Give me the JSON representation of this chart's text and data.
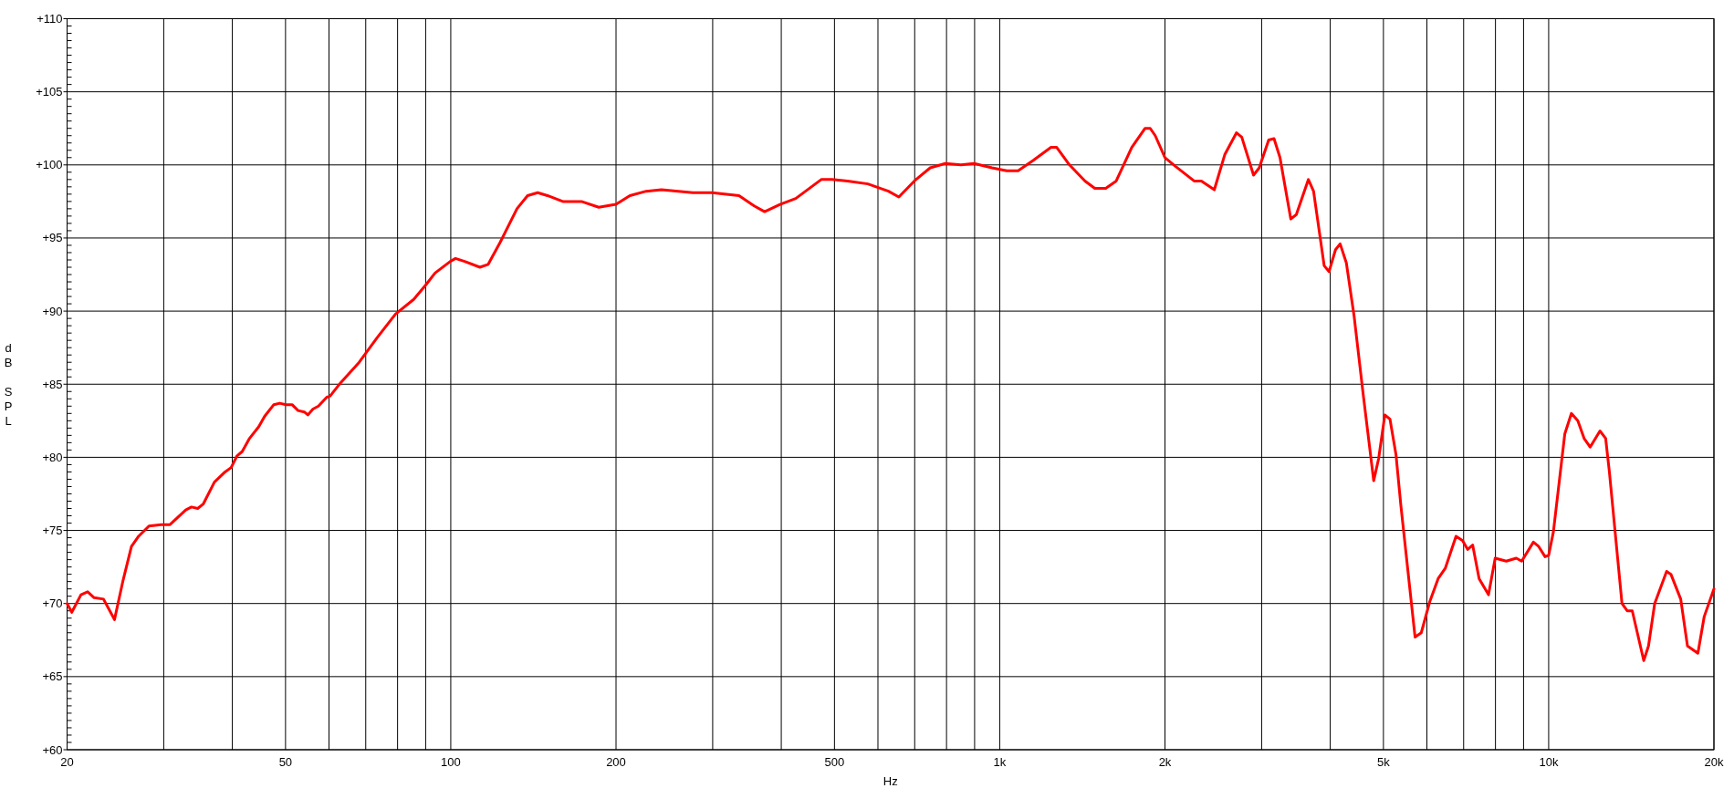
{
  "chart_data": {
    "type": "line",
    "xlabel": "Hz",
    "ylabel": "dB SPL",
    "log": "x",
    "grid": true,
    "color": "#ff0000",
    "xlim": [
      20,
      20000
    ],
    "ylim": [
      60,
      110
    ],
    "xticks": [
      20,
      {
        "value": 30,
        "label": null
      },
      {
        "value": 40,
        "label": null
      },
      50,
      {
        "value": 60,
        "label": null
      },
      {
        "value": 70,
        "label": null
      },
      {
        "value": 80,
        "label": null
      },
      {
        "value": 90,
        "label": null
      },
      100,
      200,
      {
        "value": 300,
        "label": null
      },
      {
        "value": 400,
        "label": null
      },
      500,
      {
        "value": 600,
        "label": null
      },
      {
        "value": 700,
        "label": null
      },
      {
        "value": 800,
        "label": null
      },
      {
        "value": 900,
        "label": null
      },
      {
        "value": 1000,
        "label": "1k"
      },
      {
        "value": 2000,
        "label": "2k"
      },
      {
        "value": 3000,
        "label": null
      },
      {
        "value": 4000,
        "label": null
      },
      {
        "value": 5000,
        "label": "5k"
      },
      {
        "value": 6000,
        "label": null
      },
      {
        "value": 7000,
        "label": null
      },
      {
        "value": 8000,
        "label": null
      },
      {
        "value": 9000,
        "label": null
      },
      {
        "value": 10000,
        "label": "10k"
      },
      {
        "value": 20000,
        "label": "20k"
      }
    ],
    "yticks": [
      {
        "value": 60,
        "label": "+60"
      },
      {
        "value": 60.5,
        "label": null
      },
      {
        "value": 61,
        "label": null
      },
      {
        "value": 61.5,
        "label": null
      },
      {
        "value": 62,
        "label": null
      },
      {
        "value": 62.5,
        "label": null
      },
      {
        "value": 63,
        "label": null
      },
      {
        "value": 63.5,
        "label": null
      },
      {
        "value": 64,
        "label": null
      },
      {
        "value": 64.5,
        "label": null
      },
      {
        "value": 65,
        "label": "+65"
      },
      {
        "value": 65.5,
        "label": null
      },
      {
        "value": 66,
        "label": null
      },
      {
        "value": 66.5,
        "label": null
      },
      {
        "value": 67,
        "label": null
      },
      {
        "value": 67.5,
        "label": null
      },
      {
        "value": 68,
        "label": null
      },
      {
        "value": 68.5,
        "label": null
      },
      {
        "value": 69,
        "label": null
      },
      {
        "value": 69.5,
        "label": null
      },
      {
        "value": 70,
        "label": "+70"
      },
      {
        "value": 70.5,
        "label": null
      },
      {
        "value": 71,
        "label": null
      },
      {
        "value": 71.5,
        "label": null
      },
      {
        "value": 72,
        "label": null
      },
      {
        "value": 72.5,
        "label": null
      },
      {
        "value": 73,
        "label": null
      },
      {
        "value": 73.5,
        "label": null
      },
      {
        "value": 74,
        "label": null
      },
      {
        "value": 74.5,
        "label": null
      },
      {
        "value": 75,
        "label": "+75"
      },
      {
        "value": 75.5,
        "label": null
      },
      {
        "value": 76,
        "label": null
      },
      {
        "value": 76.5,
        "label": null
      },
      {
        "value": 77,
        "label": null
      },
      {
        "value": 77.5,
        "label": null
      },
      {
        "value": 78,
        "label": null
      },
      {
        "value": 78.5,
        "label": null
      },
      {
        "value": 79,
        "label": null
      },
      {
        "value": 79.5,
        "label": null
      },
      {
        "value": 80,
        "label": "+80"
      },
      {
        "value": 80.5,
        "label": null
      },
      {
        "value": 81,
        "label": null
      },
      {
        "value": 81.5,
        "label": null
      },
      {
        "value": 82,
        "label": null
      },
      {
        "value": 82.5,
        "label": null
      },
      {
        "value": 83,
        "label": null
      },
      {
        "value": 83.5,
        "label": null
      },
      {
        "value": 84,
        "label": null
      },
      {
        "value": 84.5,
        "label": null
      },
      {
        "value": 85,
        "label": "+85"
      },
      {
        "value": 85.5,
        "label": null
      },
      {
        "value": 86,
        "label": null
      },
      {
        "value": 86.5,
        "label": null
      },
      {
        "value": 87,
        "label": null
      },
      {
        "value": 87.5,
        "label": null
      },
      {
        "value": 88,
        "label": null
      },
      {
        "value": 88.5,
        "label": null
      },
      {
        "value": 89,
        "label": null
      },
      {
        "value": 89.5,
        "label": null
      },
      {
        "value": 90,
        "label": "+90"
      },
      {
        "value": 90.5,
        "label": null
      },
      {
        "value": 91,
        "label": null
      },
      {
        "value": 91.5,
        "label": null
      },
      {
        "value": 92,
        "label": null
      },
      {
        "value": 92.5,
        "label": null
      },
      {
        "value": 93,
        "label": null
      },
      {
        "value": 93.5,
        "label": null
      },
      {
        "value": 94,
        "label": null
      },
      {
        "value": 94.5,
        "label": null
      },
      {
        "value": 95,
        "label": "+95"
      },
      {
        "value": 95.5,
        "label": null
      },
      {
        "value": 96,
        "label": null
      },
      {
        "value": 96.5,
        "label": null
      },
      {
        "value": 97,
        "label": null
      },
      {
        "value": 97.5,
        "label": null
      },
      {
        "value": 98,
        "label": null
      },
      {
        "value": 98.5,
        "label": null
      },
      {
        "value": 99,
        "label": null
      },
      {
        "value": 99.5,
        "label": null
      },
      {
        "value": 100,
        "label": "+100"
      },
      {
        "value": 100.5,
        "label": null
      },
      {
        "value": 101,
        "label": null
      },
      {
        "value": 101.5,
        "label": null
      },
      {
        "value": 102,
        "label": null
      },
      {
        "value": 102.5,
        "label": null
      },
      {
        "value": 103,
        "label": null
      },
      {
        "value": 103.5,
        "label": null
      },
      {
        "value": 104,
        "label": null
      },
      {
        "value": 104.5,
        "label": null
      },
      {
        "value": 105,
        "label": "+105"
      },
      {
        "value": 105.5,
        "label": null
      },
      {
        "value": 106,
        "label": null
      },
      {
        "value": 106.5,
        "label": null
      },
      {
        "value": 107,
        "label": null
      },
      {
        "value": 107.5,
        "label": null
      },
      {
        "value": 108,
        "label": null
      },
      {
        "value": 108.5,
        "label": null
      },
      {
        "value": 109,
        "label": null
      },
      {
        "value": 109.5,
        "label": null
      },
      {
        "value": 110,
        "label": "+110"
      }
    ],
    "x": [
      20,
      20.4,
      21.2,
      21.8,
      22.4,
      23.3,
      24.4,
      25.3,
      26.2,
      27.0,
      28.2,
      29.7,
      30.8,
      32.9,
      33.7,
      34.6,
      35.4,
      37.1,
      38.8,
      39.8,
      40.8,
      41.7,
      43.0,
      44.7,
      45.8,
      47.6,
      48.8,
      50.1,
      51.4,
      52.7,
      54.1,
      54.9,
      56.1,
      57.4,
      59.4,
      60.3,
      63.0,
      68.1,
      73.5,
      79.3,
      85.6,
      90.1,
      93.6,
      99.8,
      102,
      106,
      113,
      117,
      123,
      132,
      138,
      144,
      150,
      160,
      173,
      186,
      200,
      212,
      227,
      242,
      276,
      299,
      335,
      357,
      373,
      398,
      425,
      473,
      495,
      528,
      575,
      627,
      655,
      699,
      747,
      796,
      850,
      898,
      968,
      1030,
      1080,
      1150,
      1240,
      1270,
      1340,
      1430,
      1490,
      1560,
      1630,
      1740,
      1840,
      1880,
      1920,
      2000,
      2090,
      2260,
      2330,
      2460,
      2570,
      2700,
      2760,
      2900,
      2970,
      3090,
      3160,
      3240,
      3390,
      3470,
      3650,
      3730,
      3900,
      3980,
      4090,
      4170,
      4280,
      4420,
      4590,
      4800,
      4900,
      5030,
      5140,
      5270,
      5380,
      5710,
      5860,
      6070,
      6290,
      6480,
      6780,
      6970,
      7120,
      7270,
      7470,
      7770,
      7990,
      8370,
      8730,
      8930,
      9380,
      9590,
      9850,
      10000,
      10200,
      10700,
      11000,
      11300,
      11600,
      11900,
      12400,
      12700,
      12900,
      13600,
      13900,
      14200,
      14900,
      15200,
      15600,
      16400,
      16700,
      17400,
      17900,
      18700,
      19200,
      20000
    ],
    "values": [
      70.0,
      69.4,
      70.6,
      70.8,
      70.4,
      70.3,
      68.9,
      71.6,
      73.9,
      74.6,
      75.3,
      75.4,
      75.4,
      76.4,
      76.6,
      76.5,
      76.8,
      78.3,
      79.0,
      79.3,
      80.1,
      80.4,
      81.3,
      82.1,
      82.8,
      83.6,
      83.7,
      83.6,
      83.6,
      83.2,
      83.1,
      82.9,
      83.3,
      83.5,
      84.1,
      84.2,
      85.1,
      86.5,
      88.2,
      89.8,
      90.8,
      91.8,
      92.6,
      93.4,
      93.6,
      93.4,
      93.0,
      93.2,
      94.7,
      97.0,
      97.9,
      98.1,
      97.9,
      97.5,
      97.5,
      97.1,
      97.3,
      97.9,
      98.2,
      98.3,
      98.1,
      98.1,
      97.9,
      97.2,
      96.8,
      97.3,
      97.7,
      99.0,
      99.0,
      98.9,
      98.7,
      98.2,
      97.8,
      98.9,
      99.8,
      100.1,
      100.0,
      100.1,
      99.8,
      99.6,
      99.6,
      100.3,
      101.2,
      101.2,
      100.0,
      98.9,
      98.4,
      98.4,
      98.9,
      101.2,
      102.5,
      102.5,
      102.0,
      100.5,
      99.9,
      98.9,
      98.9,
      98.3,
      100.7,
      102.2,
      101.9,
      99.3,
      99.8,
      101.7,
      101.8,
      100.5,
      96.3,
      96.6,
      99.0,
      98.2,
      93.1,
      92.7,
      94.2,
      94.6,
      93.3,
      89.7,
      84.4,
      78.4,
      79.9,
      82.9,
      82.6,
      80.2,
      76.7,
      67.7,
      68.0,
      70.1,
      71.7,
      72.4,
      74.6,
      74.3,
      73.7,
      74.0,
      71.7,
      70.6,
      73.1,
      72.9,
      73.1,
      72.9,
      74.2,
      73.9,
      73.2,
      73.3,
      74.9,
      81.6,
      83.0,
      82.5,
      81.3,
      80.7,
      81.8,
      81.3,
      79.0,
      70.0,
      69.5,
      69.5,
      66.1,
      67.1,
      70.0,
      72.2,
      72.0,
      70.3,
      67.1,
      66.6,
      69.1,
      71.0
    ]
  }
}
